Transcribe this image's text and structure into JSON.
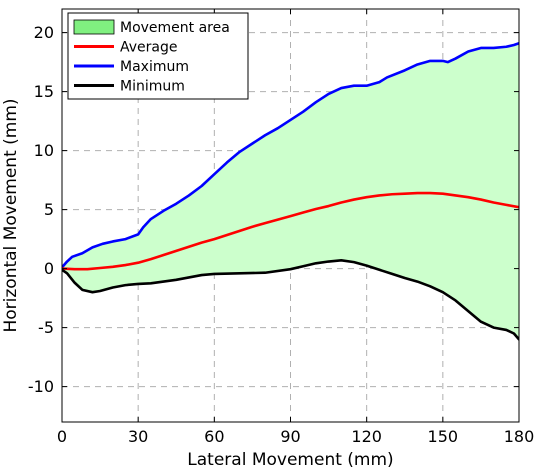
{
  "chart_data": {
    "type": "area",
    "title": "",
    "xlabel": "Lateral Movement (mm)",
    "ylabel": "Horizontal Movement (mm)",
    "xlim": [
      0,
      180
    ],
    "ylim": [
      -13,
      22
    ],
    "x_ticks": [
      0,
      30,
      60,
      90,
      120,
      150,
      180
    ],
    "y_ticks": [
      -10,
      -5,
      0,
      5,
      10,
      15,
      20
    ],
    "grid": true,
    "legend_position": "top-left",
    "colors": {
      "area": "#ccffcc",
      "area_swatch": "#80f080",
      "average": "#ff0000",
      "maximum": "#0000ff",
      "minimum": "#000000"
    },
    "series": [
      {
        "name": "Maximum",
        "x": [
          0,
          2,
          4,
          8,
          12,
          16,
          20,
          25,
          30,
          32,
          35,
          40,
          45,
          50,
          55,
          60,
          65,
          70,
          75,
          80,
          85,
          90,
          95,
          100,
          105,
          110,
          115,
          120,
          125,
          128,
          135,
          140,
          145,
          150,
          152,
          155,
          160,
          165,
          170,
          175,
          178,
          180
        ],
        "values": [
          0.1,
          0.6,
          1.0,
          1.3,
          1.8,
          2.1,
          2.3,
          2.5,
          2.9,
          3.5,
          4.2,
          4.9,
          5.5,
          6.2,
          7.0,
          8.0,
          9.0,
          9.9,
          10.6,
          11.3,
          11.9,
          12.6,
          13.3,
          14.1,
          14.8,
          15.3,
          15.5,
          15.5,
          15.8,
          16.2,
          16.8,
          17.3,
          17.6,
          17.6,
          17.5,
          17.8,
          18.4,
          18.7,
          18.7,
          18.8,
          18.95,
          19.1
        ]
      },
      {
        "name": "Average",
        "x": [
          0,
          5,
          10,
          15,
          20,
          25,
          30,
          35,
          40,
          45,
          50,
          55,
          60,
          65,
          70,
          75,
          80,
          85,
          90,
          95,
          100,
          105,
          110,
          115,
          120,
          125,
          130,
          135,
          140,
          145,
          150,
          155,
          160,
          165,
          170,
          175,
          180
        ],
        "values": [
          0.0,
          -0.05,
          -0.05,
          0.05,
          0.15,
          0.3,
          0.5,
          0.8,
          1.15,
          1.5,
          1.85,
          2.2,
          2.5,
          2.85,
          3.2,
          3.55,
          3.85,
          4.15,
          4.45,
          4.75,
          5.05,
          5.3,
          5.6,
          5.85,
          6.05,
          6.2,
          6.3,
          6.35,
          6.4,
          6.4,
          6.35,
          6.2,
          6.05,
          5.85,
          5.6,
          5.4,
          5.2
        ]
      },
      {
        "name": "Minimum",
        "x": [
          0,
          2,
          5,
          8,
          12,
          15,
          20,
          25,
          30,
          35,
          40,
          45,
          50,
          55,
          60,
          70,
          80,
          90,
          95,
          100,
          105,
          110,
          115,
          120,
          125,
          130,
          135,
          140,
          145,
          150,
          155,
          160,
          165,
          170,
          175,
          178,
          180
        ],
        "values": [
          -0.1,
          -0.4,
          -1.2,
          -1.8,
          -2.0,
          -1.9,
          -1.6,
          -1.4,
          -1.3,
          -1.25,
          -1.1,
          -0.95,
          -0.75,
          -0.55,
          -0.45,
          -0.4,
          -0.35,
          -0.05,
          0.2,
          0.45,
          0.6,
          0.7,
          0.55,
          0.25,
          -0.1,
          -0.45,
          -0.8,
          -1.1,
          -1.5,
          -2.0,
          -2.7,
          -3.6,
          -4.5,
          -5.0,
          -5.2,
          -5.5,
          -6.0
        ]
      }
    ],
    "area_label": "Movement area",
    "legend": [
      "Movement area",
      "Average",
      "Maximum",
      "Minimum"
    ]
  }
}
